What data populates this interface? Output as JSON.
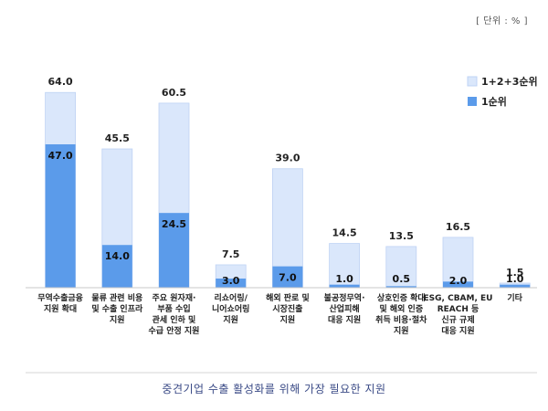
{
  "unit_label": "[ 단위 : % ]",
  "caption": "중견기업 수출 활성화를 위해 가장 필요한 지원",
  "colors": {
    "total": "#dae7fb",
    "total_stroke": "#bfd3f4",
    "first": "#5b9bea",
    "axis": "#c8c8c8"
  },
  "chart_data": {
    "type": "bar",
    "categories": [
      [
        "무역수출금융",
        "지원 확대"
      ],
      [
        "물류 관련 비용",
        "및 수출 인프라",
        "지원"
      ],
      [
        "주요 원자재·",
        "부품 수입",
        "관세 인하 및",
        "수급 안정 지원"
      ],
      [
        "리쇼어링/",
        "니어쇼어링",
        "지원"
      ],
      [
        "해외 판로 및",
        "시장진출",
        "지원"
      ],
      [
        "불공정무역·",
        "산업피해",
        "대응 지원"
      ],
      [
        "상호인증 확대",
        "및 해외 인증",
        "취득 비용·절차",
        "지원"
      ],
      [
        "ESG, CBAM, EU",
        "REACH 등",
        "신규 규제",
        "대응 지원"
      ],
      [
        "기타"
      ]
    ],
    "series": [
      {
        "name": "1+2+3순위",
        "values": [
          64.0,
          45.5,
          60.5,
          7.5,
          39.0,
          14.5,
          13.5,
          16.5,
          1.5
        ],
        "labels": [
          "64.0",
          "45.5",
          "60.5",
          "7.5",
          "39.0",
          "14.5",
          "13.5",
          "16.5",
          "1.5"
        ]
      },
      {
        "name": "1순위",
        "values": [
          47.0,
          14.0,
          24.5,
          3.0,
          7.0,
          1.0,
          0.5,
          2.0,
          1.0
        ],
        "labels": [
          "47.0",
          "14.0",
          "24.5",
          "3.0",
          "7.0",
          "1.0",
          "0.5",
          "2.0",
          "1.0"
        ]
      }
    ],
    "ylim": [
      0,
      70
    ],
    "legend": "top-right",
    "grid": false
  }
}
